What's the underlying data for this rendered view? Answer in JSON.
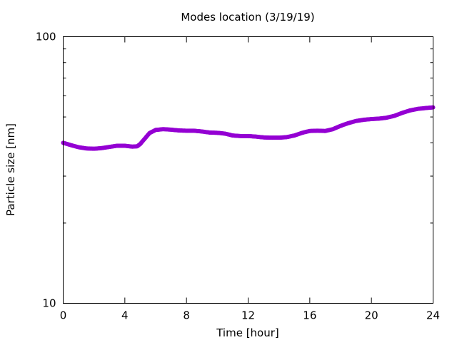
{
  "chart_data": {
    "type": "scatter",
    "title": "Modes location (3/19/19)",
    "xlabel": "Time [hour]",
    "ylabel": "Particle size [nm]",
    "xlim": [
      0,
      24
    ],
    "ylim": [
      10,
      100
    ],
    "yscale": "log",
    "x_ticks": [
      0,
      4,
      8,
      12,
      16,
      20,
      24
    ],
    "y_ticks": [
      10,
      100
    ],
    "grid": false,
    "legend": "none",
    "series": [
      {
        "color": "#9400d3",
        "x": [
          0,
          0.5,
          1,
          1.5,
          2,
          2.5,
          3,
          3.5,
          4,
          4.5,
          4.8,
          5,
          5.3,
          5.6,
          6,
          6.5,
          7,
          7.5,
          8,
          8.5,
          9,
          9.5,
          10,
          10.5,
          11,
          11.5,
          12,
          12.5,
          13,
          13.5,
          14,
          14.5,
          15,
          15.5,
          16,
          16.5,
          17,
          17.5,
          18,
          18.5,
          19,
          19.5,
          20,
          20.5,
          21,
          21.5,
          22,
          22.5,
          23,
          23.5,
          24
        ],
        "y": [
          40,
          39.2,
          38.5,
          38.1,
          38.0,
          38.2,
          38.6,
          39.0,
          39.0,
          38.7,
          38.8,
          39.6,
          41.5,
          43.5,
          44.7,
          45.0,
          44.8,
          44.5,
          44.4,
          44.4,
          44.1,
          43.7,
          43.6,
          43.3,
          42.6,
          42.4,
          42.4,
          42.2,
          41.9,
          41.8,
          41.8,
          42.0,
          42.6,
          43.6,
          44.3,
          44.4,
          44.3,
          45.0,
          46.3,
          47.4,
          48.3,
          48.8,
          49.1,
          49.3,
          49.7,
          50.5,
          51.8,
          52.9,
          53.6,
          54.0,
          54.3
        ]
      }
    ]
  }
}
